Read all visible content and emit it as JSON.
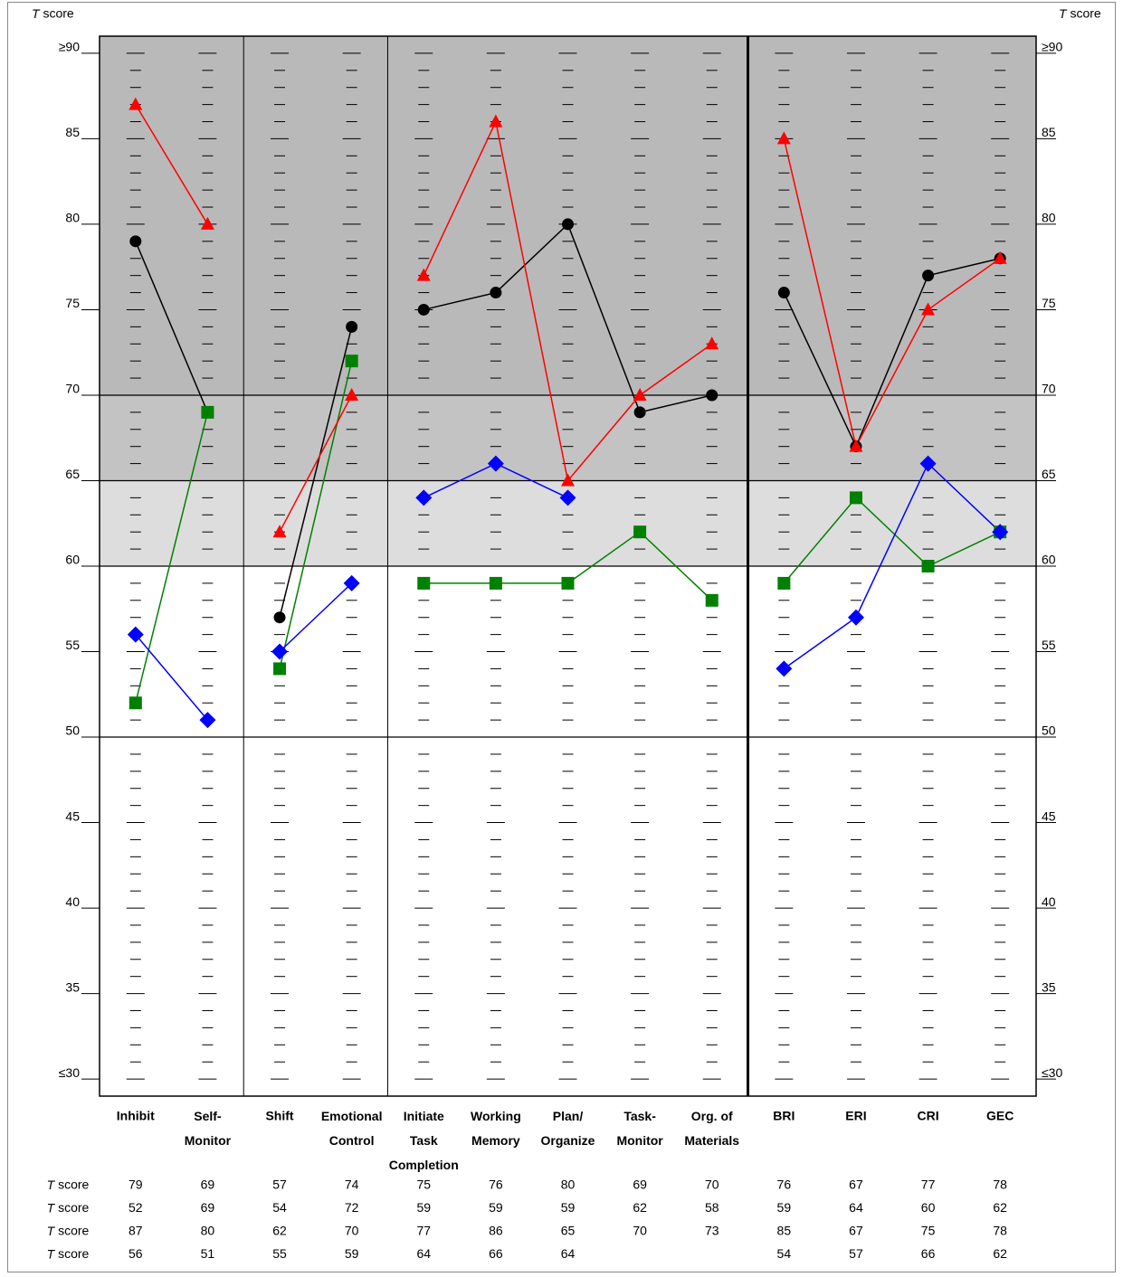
{
  "chart_data": {
    "type": "line",
    "y_label": "T score",
    "categories": [
      "Inhibit",
      "Self-\nMonitor",
      "Shift",
      "Emotional\nControl",
      "Initiate\nTask\nCompletion",
      "Working\nMemory",
      "Plan/\nOrganize",
      "Task-\nMonitor",
      "Org. of\nMaterials",
      "BRI",
      "ERI",
      "CRI",
      "GEC"
    ],
    "series": [
      {
        "color": "#000000",
        "marker": "circle",
        "values": [
          79,
          69,
          57,
          74,
          75,
          76,
          80,
          69,
          70,
          76,
          67,
          77,
          78
        ]
      },
      {
        "color": "#008000",
        "marker": "square",
        "values": [
          52,
          69,
          54,
          72,
          59,
          59,
          59,
          62,
          58,
          59,
          64,
          60,
          62
        ]
      },
      {
        "color": "#ff0000",
        "marker": "triangle",
        "values": [
          87,
          80,
          62,
          70,
          77,
          86,
          65,
          70,
          73,
          85,
          67,
          75,
          78
        ]
      },
      {
        "color": "#0000ff",
        "marker": "diamond",
        "values": [
          56,
          51,
          55,
          59,
          64,
          66,
          64,
          null,
          null,
          54,
          57,
          66,
          62
        ]
      }
    ],
    "ylim": [
      29,
      91
    ],
    "yticks": [
      {
        "value": 90,
        "label": "≥90"
      },
      85,
      80,
      75,
      70,
      65,
      60,
      55,
      50,
      45,
      40,
      35,
      {
        "value": 30,
        "label": "≤30"
      }
    ],
    "shading": [
      {
        "from": 70,
        "color": "#b9b9b9"
      },
      {
        "from": 65,
        "to": 70,
        "color": "#c3c3c3"
      },
      {
        "from": 60,
        "to": 65,
        "color": "#dddddd"
      }
    ],
    "reference_lines": [
      50,
      60,
      65,
      70
    ],
    "group_starts": [
      2,
      4,
      9
    ],
    "major_group_start": 9
  }
}
